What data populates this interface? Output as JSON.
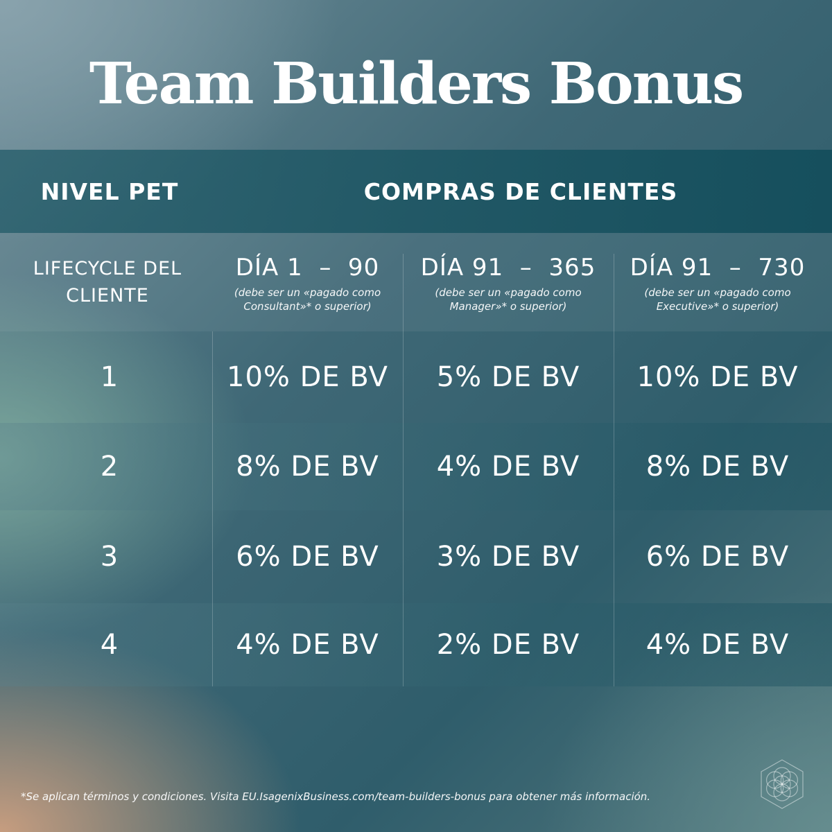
{
  "title": "Team Builders Bonus",
  "header": {
    "col1": "NIVEL PET",
    "col2": "COMPRAS DE CLIENTES"
  },
  "subheader": {
    "lifecycle_line1": "LIFECYCLE DEL",
    "lifecycle_line2": "CLIENTE",
    "periods": [
      {
        "label": "DÍA 1  –  90",
        "note_line1": "(debe ser un «pagado como",
        "note_line2": "Consultant»* o superior)"
      },
      {
        "label": "DÍA 91  –  365",
        "note_line1": "(debe ser un «pagado como",
        "note_line2": "Manager»* o superior)"
      },
      {
        "label": "DÍA 91  –  730",
        "note_line1": "(debe ser un «pagado como",
        "note_line2": "Executive»* o superior)"
      }
    ]
  },
  "rows": [
    {
      "level": "1",
      "values": [
        "10% DE BV",
        "5% DE BV",
        "10% DE BV"
      ]
    },
    {
      "level": "2",
      "values": [
        "8% DE BV",
        "4% DE BV",
        "8% DE BV"
      ]
    },
    {
      "level": "3",
      "values": [
        "6% DE BV",
        "3% DE BV",
        "6% DE BV"
      ]
    },
    {
      "level": "4",
      "values": [
        "4% DE BV",
        "2% DE BV",
        "4% DE BV"
      ]
    }
  ],
  "footer": "*Se aplican términos y condiciones. Visita EU.IsagenixBusiness.com/team-builders-bonus para obtener más información.",
  "logo_icon": "flower-of-life-icon"
}
